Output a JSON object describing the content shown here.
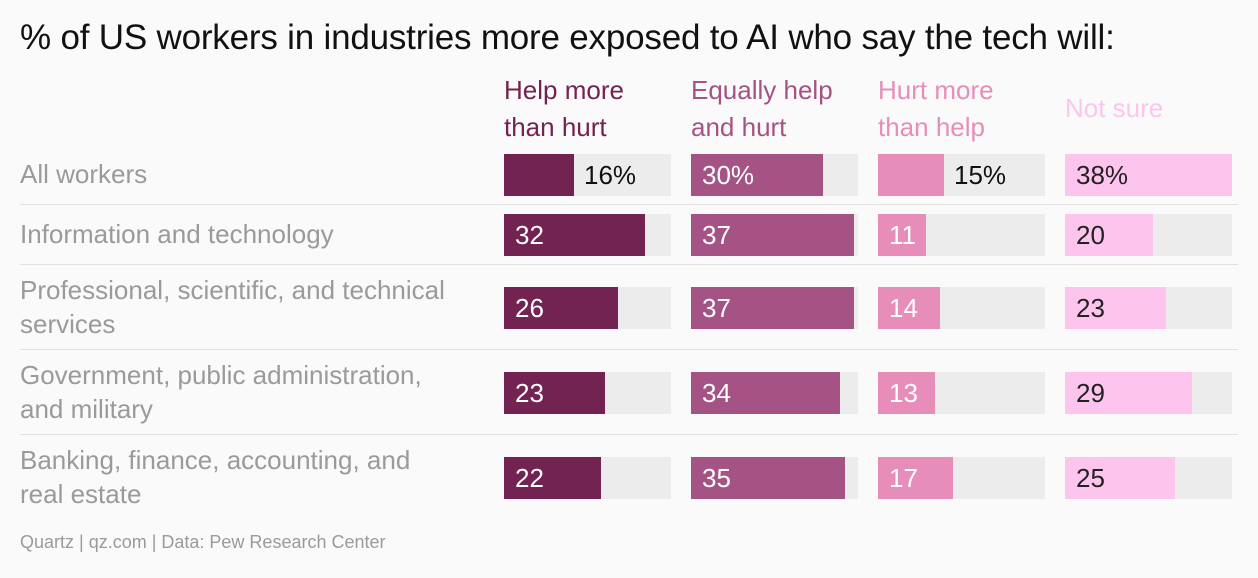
{
  "title": "% of US workers in industries more exposed to AI who say the tech will:",
  "source": "Quartz | qz.com | Data: Pew Research Center",
  "chart_data": {
    "type": "bar",
    "title": "% of US workers in industries more exposed to AI who say the tech will:",
    "categories": [
      [
        "All workers"
      ],
      [
        "Information and technology"
      ],
      [
        "Professional, scientific, and technical",
        "services"
      ],
      [
        "Government, public administration,",
        "and military"
      ],
      [
        "Banking, finance, accounting, and",
        "real estate"
      ]
    ],
    "series": [
      {
        "name": [
          "Help more",
          "than hurt"
        ],
        "color": "#722352",
        "values": [
          16,
          32,
          26,
          23,
          22
        ],
        "labels": [
          "16%",
          "32",
          "26",
          "23",
          "22"
        ]
      },
      {
        "name": [
          "Equally help",
          "and hurt"
        ],
        "color": "#a55384",
        "values": [
          30,
          37,
          37,
          34,
          35
        ],
        "labels": [
          "30%",
          "37",
          "37",
          "34",
          "35"
        ]
      },
      {
        "name": [
          "Hurt more",
          "than help"
        ],
        "color": "#e68eb9",
        "values": [
          15,
          11,
          14,
          13,
          17
        ],
        "labels": [
          "15%",
          "11",
          "14",
          "13",
          "17"
        ]
      },
      {
        "name": [
          "Not sure"
        ],
        "color": "#fdc5ee",
        "values": [
          38,
          20,
          23,
          29,
          25
        ],
        "labels": [
          "38%",
          "20",
          "23",
          "29",
          "25"
        ]
      }
    ],
    "ylim": [
      0,
      38
    ]
  }
}
